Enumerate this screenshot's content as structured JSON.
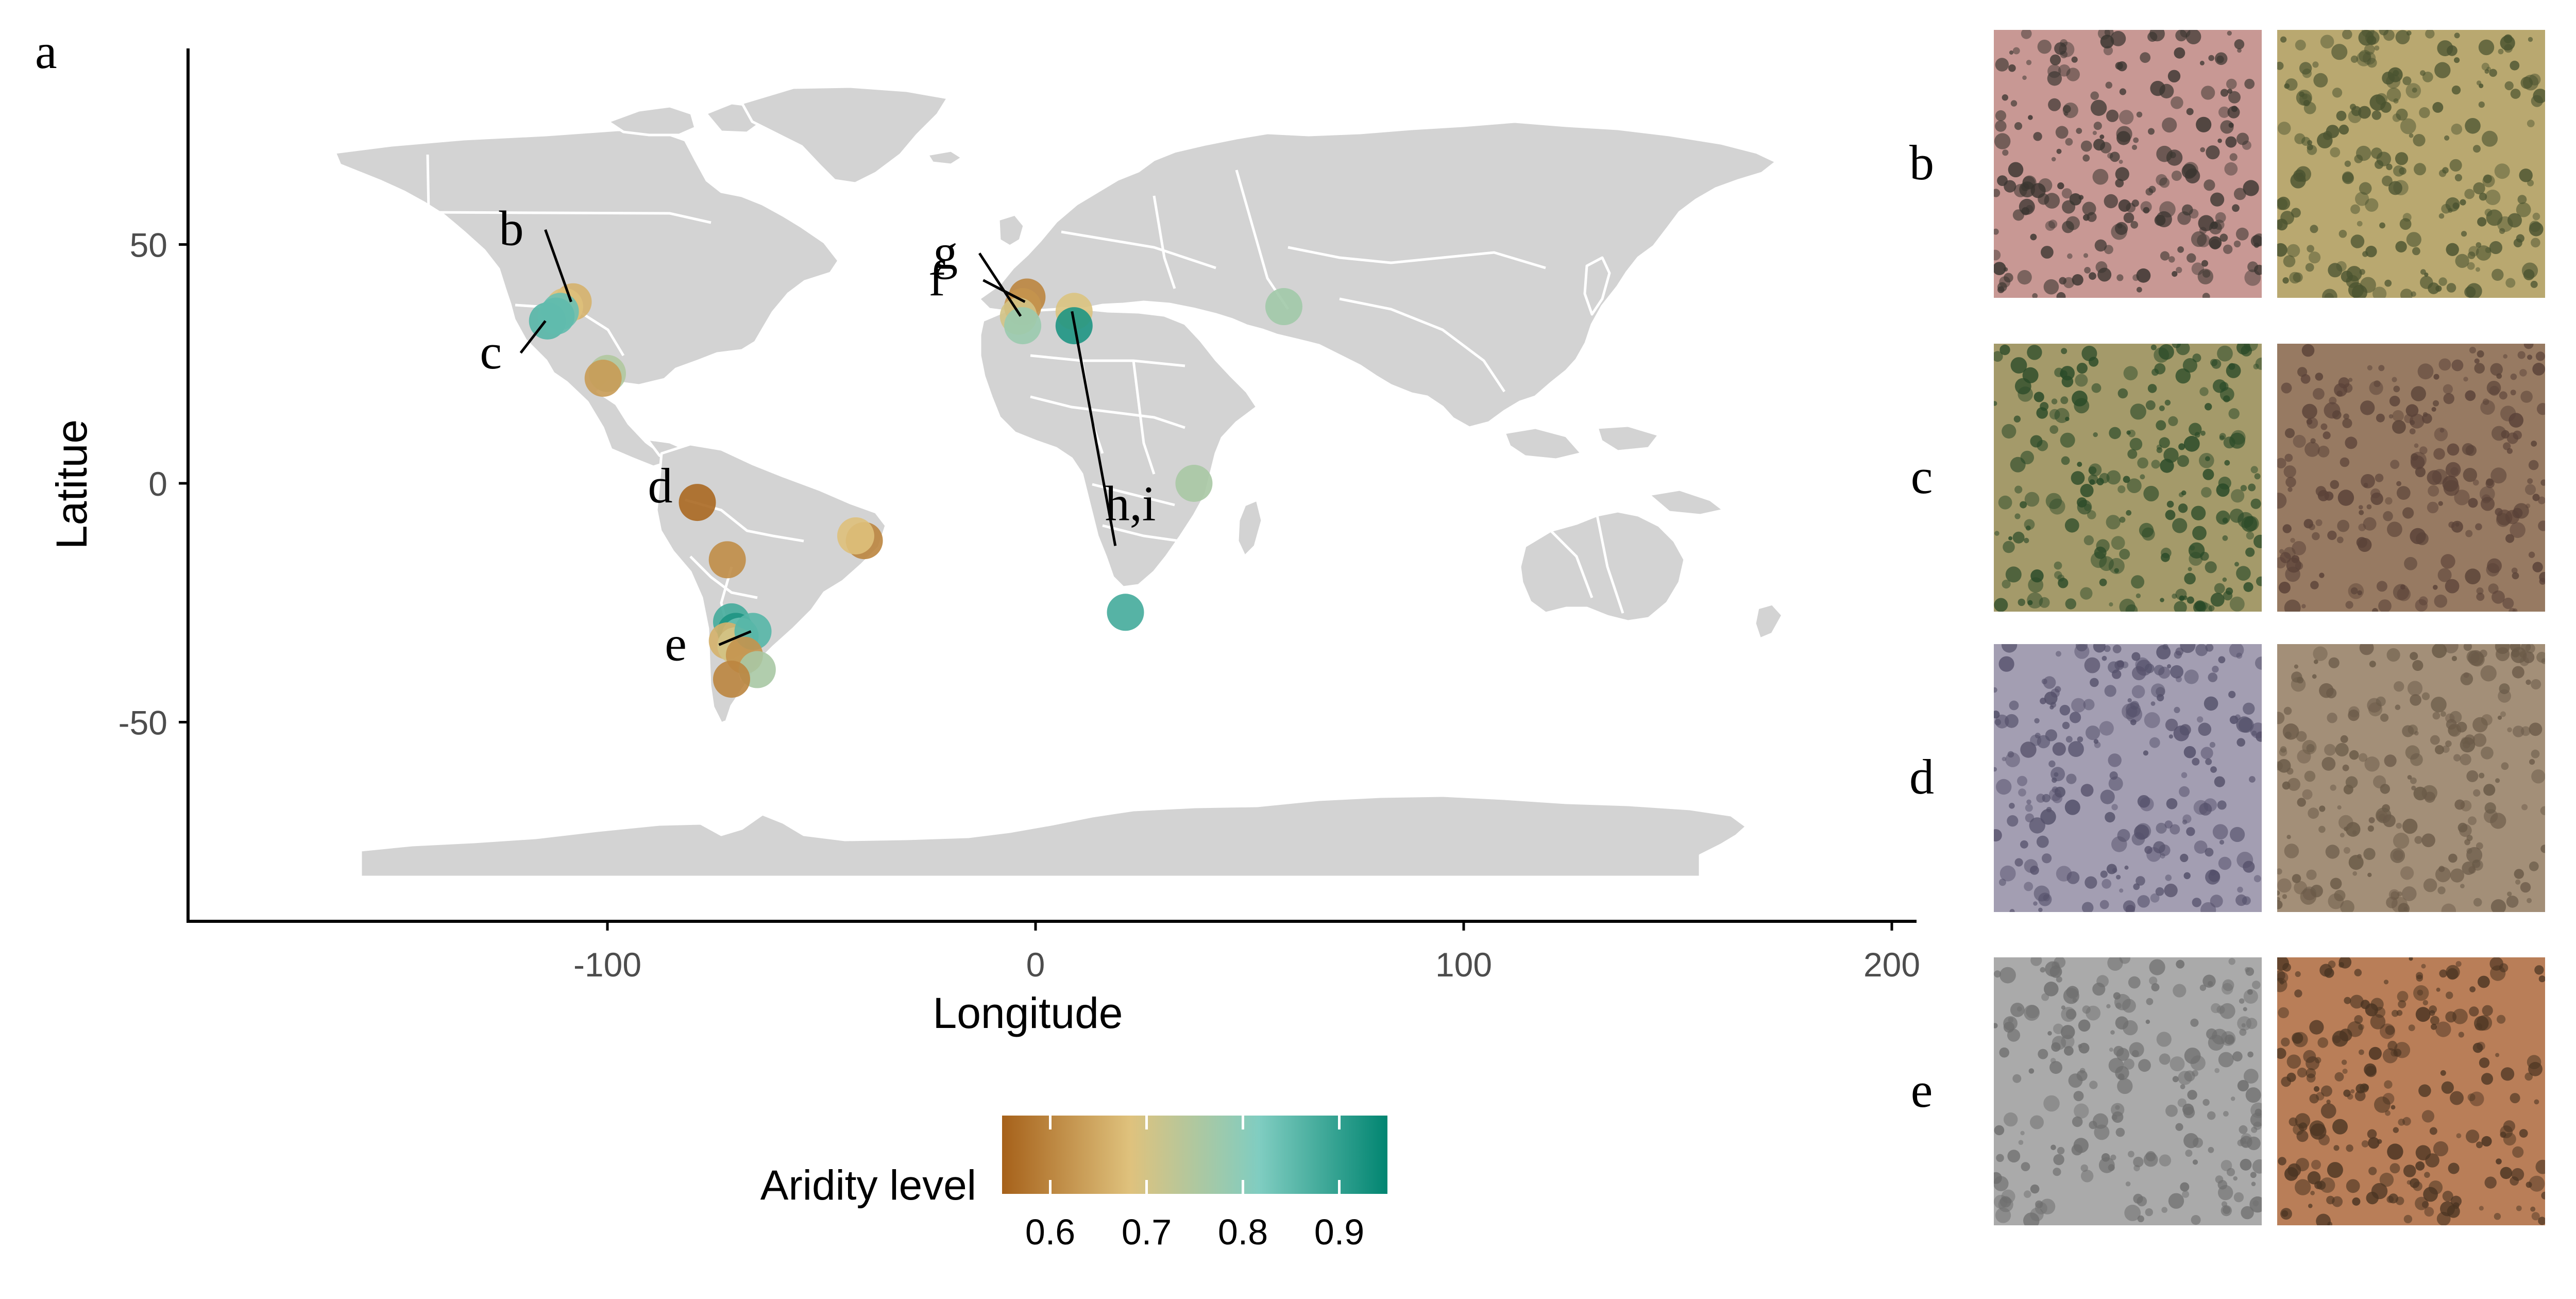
{
  "figure": {
    "panel_label": "a",
    "xlabel": "Longitude",
    "ylabel": "Latitue",
    "xticks": [
      -100,
      0,
      100,
      200
    ],
    "yticks": [
      50,
      0,
      -50
    ],
    "xlim": [
      -200,
      208
    ],
    "ylim": [
      -93,
      91
    ],
    "land_color": "#d3d3d3",
    "border_color": "#ffffff",
    "axis_color": "#000000"
  },
  "legend": {
    "title": "Aridity level",
    "ticks": [
      "0.6",
      "0.7",
      "0.8",
      "0.9"
    ],
    "range": [
      0.55,
      0.95
    ],
    "tick_values": [
      0.6,
      0.7,
      0.8,
      0.9
    ],
    "colors": [
      "#a6611a",
      "#dfc27d",
      "#80cdc1",
      "#018571"
    ]
  },
  "callouts": [
    {
      "label": "b",
      "lon": -108,
      "lat": 38
    },
    {
      "label": "c",
      "lon": -114,
      "lat": 34
    },
    {
      "label": "d",
      "lon": -79,
      "lat": -4
    },
    {
      "label": "e",
      "lon": -66,
      "lat": -31
    },
    {
      "label": "f",
      "lon": -2,
      "lat": 38
    },
    {
      "label": "g",
      "lon": -3,
      "lat": 35
    },
    {
      "label": "h,i",
      "lon": 9,
      "lat": 36
    }
  ],
  "thumbnails": [
    {
      "label": "b",
      "base": "#c89894",
      "dot": "#3a3530"
    },
    {
      "label": "f",
      "base": "#b9a870",
      "dot": "#4a5330"
    },
    {
      "label": "c",
      "base": "#a49a6a",
      "dot": "#2a4a28"
    },
    {
      "label": "g",
      "base": "#977a62",
      "dot": "#5a4238"
    },
    {
      "label": "d",
      "base": "#a39eb2",
      "dot": "#54506a"
    },
    {
      "label": "h",
      "base": "#a38f78",
      "dot": "#6a5a48"
    },
    {
      "label": "e",
      "base": "#aaaaaa",
      "dot": "#6e6e6e"
    },
    {
      "label": "i",
      "base": "#b97e58",
      "dot": "#4a3422"
    }
  ],
  "chart_data": {
    "type": "scatter",
    "xlabel": "Longitude",
    "ylabel": "Latitue",
    "xlim": [
      -200,
      208
    ],
    "ylim": [
      -93,
      91
    ],
    "color_variable": "Aridity level",
    "points": [
      {
        "lon": -108,
        "lat": 38,
        "aridity": 0.66
      },
      {
        "lon": -110,
        "lat": 37,
        "aridity": 0.68
      },
      {
        "lon": -111,
        "lat": 36,
        "aridity": 0.84
      },
      {
        "lon": -114,
        "lat": 34,
        "aridity": 0.86
      },
      {
        "lon": -112,
        "lat": 35,
        "aridity": 0.85
      },
      {
        "lon": -100,
        "lat": 23,
        "aridity": 0.75
      },
      {
        "lon": -101,
        "lat": 22,
        "aridity": 0.63
      },
      {
        "lon": -79,
        "lat": -4,
        "aridity": 0.56
      },
      {
        "lon": -72,
        "lat": -16,
        "aridity": 0.61
      },
      {
        "lon": -40,
        "lat": -12,
        "aridity": 0.6
      },
      {
        "lon": -42,
        "lat": -11,
        "aridity": 0.68
      },
      {
        "lon": -71,
        "lat": -29,
        "aridity": 0.88
      },
      {
        "lon": -70,
        "lat": -31,
        "aridity": 0.92
      },
      {
        "lon": -69,
        "lat": -32,
        "aridity": 0.84
      },
      {
        "lon": -72,
        "lat": -33,
        "aridity": 0.66
      },
      {
        "lon": -70,
        "lat": -34,
        "aridity": 0.7
      },
      {
        "lon": -66,
        "lat": -31,
        "aridity": 0.86
      },
      {
        "lon": -68,
        "lat": -36,
        "aridity": 0.62
      },
      {
        "lon": -65,
        "lat": -39,
        "aridity": 0.76
      },
      {
        "lon": -71,
        "lat": -41,
        "aridity": 0.6
      },
      {
        "lon": -2,
        "lat": 39,
        "aridity": 0.6
      },
      {
        "lon": -3,
        "lat": 37,
        "aridity": 0.62
      },
      {
        "lon": -4,
        "lat": 35,
        "aridity": 0.7
      },
      {
        "lon": -3,
        "lat": 33,
        "aridity": 0.78
      },
      {
        "lon": 9,
        "lat": 36,
        "aridity": 0.69
      },
      {
        "lon": 9,
        "lat": 33,
        "aridity": 0.92
      },
      {
        "lon": 37,
        "lat": 0,
        "aridity": 0.76
      },
      {
        "lon": 21,
        "lat": -27,
        "aridity": 0.88
      },
      {
        "lon": 58,
        "lat": 37,
        "aridity": 0.77
      }
    ]
  }
}
